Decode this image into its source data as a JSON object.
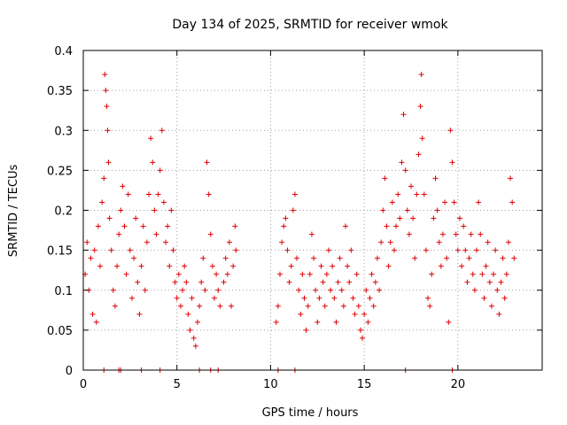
{
  "chart_data": {
    "type": "scatter",
    "title": "Day 134 of 2025, SRMTID for receiver wmok",
    "xlabel": "GPS time / hours",
    "ylabel": "SRMTID / TECUs",
    "xlim": [
      0,
      24.5
    ],
    "ylim": [
      0,
      0.4
    ],
    "x_ticks": [
      0,
      5,
      10,
      15,
      20
    ],
    "x_tick_labels": [
      "0",
      "5",
      "10",
      "15",
      "20"
    ],
    "y_ticks": [
      0,
      0.05,
      0.1,
      0.15,
      0.2,
      0.25,
      0.3,
      0.35,
      0.4
    ],
    "y_tick_labels": [
      "0",
      "0.05",
      "0.1",
      "0.15",
      "0.2",
      "0.25",
      "0.3",
      "0.35",
      "0.4"
    ],
    "grid": true,
    "marker": "+",
    "color": "#e00000",
    "series": [
      {
        "name": "SRMTID",
        "points": [
          [
            0.1,
            0.12
          ],
          [
            0.2,
            0.16
          ],
          [
            0.3,
            0.1
          ],
          [
            0.4,
            0.14
          ],
          [
            0.5,
            0.07
          ],
          [
            0.6,
            0.15
          ],
          [
            0.7,
            0.06
          ],
          [
            0.8,
            0.18
          ],
          [
            0.9,
            0.13
          ],
          [
            1.0,
            0.21
          ],
          [
            1.1,
            0.24
          ],
          [
            1.15,
            0.37
          ],
          [
            1.2,
            0.35
          ],
          [
            1.25,
            0.33
          ],
          [
            1.3,
            0.3
          ],
          [
            1.35,
            0.26
          ],
          [
            1.4,
            0.19
          ],
          [
            1.5,
            0.15
          ],
          [
            1.6,
            0.1
          ],
          [
            1.7,
            0.08
          ],
          [
            1.8,
            0.13
          ],
          [
            1.9,
            0.17
          ],
          [
            2.0,
            0.2
          ],
          [
            2.1,
            0.23
          ],
          [
            2.2,
            0.18
          ],
          [
            2.3,
            0.12
          ],
          [
            2.4,
            0.22
          ],
          [
            2.5,
            0.15
          ],
          [
            2.6,
            0.09
          ],
          [
            2.7,
            0.14
          ],
          [
            2.8,
            0.19
          ],
          [
            2.9,
            0.11
          ],
          [
            3.0,
            0.07
          ],
          [
            3.1,
            0.13
          ],
          [
            3.2,
            0.18
          ],
          [
            3.3,
            0.1
          ],
          [
            3.4,
            0.16
          ],
          [
            3.5,
            0.22
          ],
          [
            3.6,
            0.29
          ],
          [
            3.7,
            0.26
          ],
          [
            3.8,
            0.2
          ],
          [
            3.9,
            0.17
          ],
          [
            4.0,
            0.22
          ],
          [
            4.1,
            0.25
          ],
          [
            4.2,
            0.3
          ],
          [
            4.3,
            0.21
          ],
          [
            4.4,
            0.16
          ],
          [
            4.5,
            0.18
          ],
          [
            4.6,
            0.13
          ],
          [
            4.7,
            0.2
          ],
          [
            4.8,
            0.15
          ],
          [
            4.9,
            0.11
          ],
          [
            5.0,
            0.09
          ],
          [
            5.1,
            0.12
          ],
          [
            5.2,
            0.08
          ],
          [
            5.3,
            0.1
          ],
          [
            5.4,
            0.13
          ],
          [
            5.5,
            0.11
          ],
          [
            5.6,
            0.07
          ],
          [
            5.7,
            0.05
          ],
          [
            5.8,
            0.09
          ],
          [
            5.9,
            0.04
          ],
          [
            6.0,
            0.03
          ],
          [
            6.1,
            0.06
          ],
          [
            6.2,
            0.08
          ],
          [
            6.3,
            0.11
          ],
          [
            6.4,
            0.14
          ],
          [
            6.5,
            0.1
          ],
          [
            6.6,
            0.26
          ],
          [
            6.7,
            0.22
          ],
          [
            6.8,
            0.17
          ],
          [
            6.9,
            0.13
          ],
          [
            7.0,
            0.09
          ],
          [
            7.1,
            0.12
          ],
          [
            7.2,
            0.1
          ],
          [
            7.3,
            0.08
          ],
          [
            7.5,
            0.11
          ],
          [
            7.6,
            0.14
          ],
          [
            7.7,
            0.12
          ],
          [
            7.8,
            0.16
          ],
          [
            7.9,
            0.08
          ],
          [
            8.0,
            0.13
          ],
          [
            8.1,
            0.18
          ],
          [
            8.15,
            0.15
          ],
          [
            10.3,
            0.06
          ],
          [
            10.4,
            0.08
          ],
          [
            10.5,
            0.12
          ],
          [
            10.6,
            0.16
          ],
          [
            10.7,
            0.18
          ],
          [
            10.8,
            0.19
          ],
          [
            10.9,
            0.15
          ],
          [
            11.0,
            0.11
          ],
          [
            11.1,
            0.13
          ],
          [
            11.2,
            0.2
          ],
          [
            11.3,
            0.22
          ],
          [
            11.4,
            0.14
          ],
          [
            11.5,
            0.1
          ],
          [
            11.6,
            0.07
          ],
          [
            11.7,
            0.12
          ],
          [
            11.8,
            0.09
          ],
          [
            11.9,
            0.05
          ],
          [
            12.0,
            0.08
          ],
          [
            12.1,
            0.12
          ],
          [
            12.2,
            0.17
          ],
          [
            12.3,
            0.14
          ],
          [
            12.4,
            0.1
          ],
          [
            12.5,
            0.06
          ],
          [
            12.6,
            0.09
          ],
          [
            12.7,
            0.13
          ],
          [
            12.8,
            0.11
          ],
          [
            12.9,
            0.08
          ],
          [
            13.0,
            0.12
          ],
          [
            13.1,
            0.15
          ],
          [
            13.2,
            0.1
          ],
          [
            13.3,
            0.13
          ],
          [
            13.4,
            0.09
          ],
          [
            13.5,
            0.06
          ],
          [
            13.6,
            0.11
          ],
          [
            13.7,
            0.14
          ],
          [
            13.8,
            0.1
          ],
          [
            13.9,
            0.08
          ],
          [
            14.0,
            0.18
          ],
          [
            14.1,
            0.13
          ],
          [
            14.2,
            0.11
          ],
          [
            14.3,
            0.15
          ],
          [
            14.4,
            0.09
          ],
          [
            14.5,
            0.07
          ],
          [
            14.6,
            0.12
          ],
          [
            14.7,
            0.08
          ],
          [
            14.8,
            0.05
          ],
          [
            14.9,
            0.04
          ],
          [
            15.0,
            0.07
          ],
          [
            15.1,
            0.1
          ],
          [
            15.2,
            0.06
          ],
          [
            15.3,
            0.09
          ],
          [
            15.4,
            0.12
          ],
          [
            15.5,
            0.08
          ],
          [
            15.6,
            0.11
          ],
          [
            15.7,
            0.14
          ],
          [
            15.8,
            0.1
          ],
          [
            15.9,
            0.16
          ],
          [
            16.0,
            0.2
          ],
          [
            16.1,
            0.24
          ],
          [
            16.2,
            0.18
          ],
          [
            16.3,
            0.13
          ],
          [
            16.4,
            0.16
          ],
          [
            16.5,
            0.21
          ],
          [
            16.6,
            0.15
          ],
          [
            16.7,
            0.18
          ],
          [
            16.8,
            0.22
          ],
          [
            16.9,
            0.19
          ],
          [
            17.0,
            0.26
          ],
          [
            17.1,
            0.32
          ],
          [
            17.2,
            0.25
          ],
          [
            17.3,
            0.2
          ],
          [
            17.4,
            0.17
          ],
          [
            17.5,
            0.23
          ],
          [
            17.6,
            0.19
          ],
          [
            17.7,
            0.14
          ],
          [
            17.8,
            0.22
          ],
          [
            17.9,
            0.27
          ],
          [
            18.0,
            0.33
          ],
          [
            18.05,
            0.37
          ],
          [
            18.1,
            0.29
          ],
          [
            18.2,
            0.22
          ],
          [
            18.3,
            0.15
          ],
          [
            18.4,
            0.09
          ],
          [
            18.5,
            0.08
          ],
          [
            18.6,
            0.12
          ],
          [
            18.7,
            0.19
          ],
          [
            18.8,
            0.24
          ],
          [
            18.9,
            0.2
          ],
          [
            19.0,
            0.16
          ],
          [
            19.1,
            0.13
          ],
          [
            19.2,
            0.17
          ],
          [
            19.3,
            0.21
          ],
          [
            19.4,
            0.14
          ],
          [
            19.5,
            0.06
          ],
          [
            19.6,
            0.3
          ],
          [
            19.7,
            0.26
          ],
          [
            19.8,
            0.21
          ],
          [
            19.9,
            0.17
          ],
          [
            20.0,
            0.15
          ],
          [
            20.1,
            0.19
          ],
          [
            20.2,
            0.13
          ],
          [
            20.3,
            0.18
          ],
          [
            20.4,
            0.15
          ],
          [
            20.5,
            0.11
          ],
          [
            20.6,
            0.14
          ],
          [
            20.7,
            0.17
          ],
          [
            20.8,
            0.12
          ],
          [
            20.9,
            0.1
          ],
          [
            21.0,
            0.15
          ],
          [
            21.1,
            0.21
          ],
          [
            21.2,
            0.17
          ],
          [
            21.3,
            0.12
          ],
          [
            21.4,
            0.09
          ],
          [
            21.5,
            0.13
          ],
          [
            21.6,
            0.16
          ],
          [
            21.7,
            0.11
          ],
          [
            21.8,
            0.08
          ],
          [
            21.9,
            0.12
          ],
          [
            22.0,
            0.15
          ],
          [
            22.1,
            0.1
          ],
          [
            22.2,
            0.07
          ],
          [
            22.3,
            0.11
          ],
          [
            22.4,
            0.14
          ],
          [
            22.5,
            0.09
          ],
          [
            22.6,
            0.12
          ],
          [
            22.7,
            0.16
          ],
          [
            22.8,
            0.24
          ],
          [
            22.9,
            0.21
          ],
          [
            23.0,
            0.14
          ]
        ]
      }
    ],
    "axis_marks": [
      1.1,
      1.9,
      2.0,
      3.1,
      4.1,
      6.2,
      6.8,
      7.2,
      10.4,
      11.3,
      17.2,
      19.7
    ]
  }
}
